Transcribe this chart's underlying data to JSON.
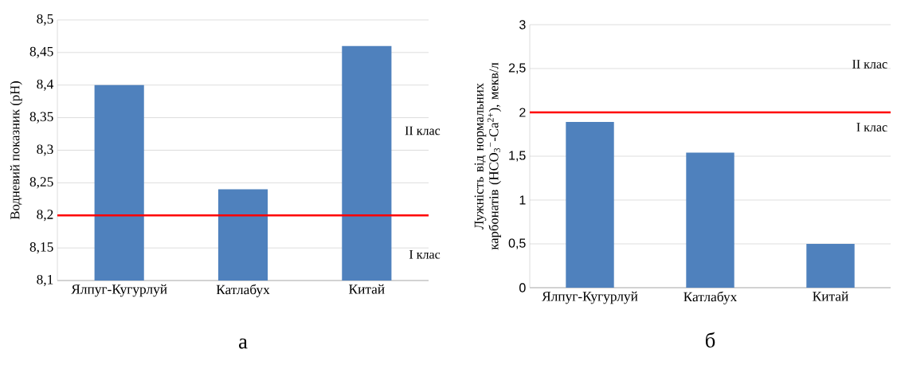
{
  "chart_data": [
    {
      "type": "bar",
      "title": "а",
      "ylabel": "Водневий показник (pH)",
      "categories": [
        "Ялпуг-Кугурлуй",
        "Катлабух",
        "Китай"
      ],
      "values": [
        8.4,
        8.24,
        8.46
      ],
      "color": "#4f81bd",
      "ylim": [
        8.1,
        8.5
      ],
      "yticks": [
        {
          "value": 8.1,
          "label": "8,1"
        },
        {
          "value": 8.15,
          "label": "8,15"
        },
        {
          "value": 8.2,
          "label": "8,2"
        },
        {
          "value": 8.25,
          "label": "8,25"
        },
        {
          "value": 8.3,
          "label": "8,3"
        },
        {
          "value": 8.35,
          "label": "8,35"
        },
        {
          "value": 8.4,
          "label": "8,4"
        },
        {
          "value": 8.45,
          "label": "8,45"
        },
        {
          "value": 8.5,
          "label": "8,5"
        }
      ],
      "grid": "y",
      "ref_lines": [
        {
          "axis": "y",
          "value": 8.2,
          "color": "#ff0000"
        }
      ],
      "annotations": [
        "II клас",
        "I клас"
      ]
    },
    {
      "type": "bar",
      "title": "б",
      "ylabel": "Лужність від нормальних карбонатів (HCO$_{3}$$^{−}$-Ca$^{2+}$), мекв/л",
      "categories": [
        "Ялпуг-Кугурлуй",
        "Катлабух",
        "Китай"
      ],
      "values": [
        1.89,
        1.54,
        0.5
      ],
      "color": "#4f81bd",
      "ylim": [
        0,
        3
      ],
      "yticks": [
        0,
        {
          "value": 0.5,
          "label": "0,5"
        },
        1,
        {
          "value": 1.5,
          "label": "1,5"
        },
        2,
        {
          "value": 2.5,
          "label": "2,5"
        },
        3
      ],
      "grid": "y",
      "ref_lines": [
        {
          "axis": "y",
          "value": 2,
          "color": "#ff0000"
        }
      ],
      "annotations": [
        "II клас",
        "I клас"
      ]
    }
  ]
}
